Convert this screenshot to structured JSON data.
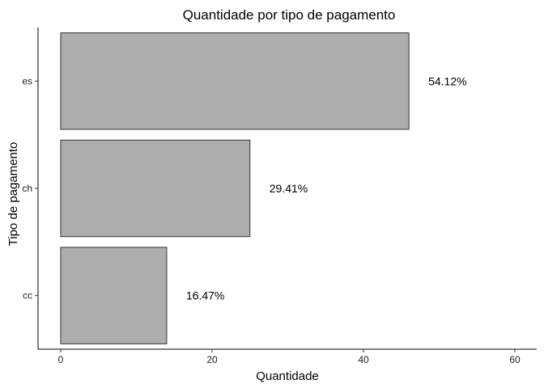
{
  "chart_data": {
    "type": "bar",
    "orientation": "horizontal",
    "title": "Quantidade por tipo de pagamento",
    "xlabel": "Quantidade",
    "ylabel": "Tipo de pagamento",
    "categories": [
      "es",
      "ch",
      "cc"
    ],
    "values": [
      46,
      25,
      14
    ],
    "data_labels": [
      "54.12%",
      "29.41%",
      "16.47%"
    ],
    "xlim": [
      0,
      62
    ],
    "xticks": [
      0,
      20,
      40,
      60
    ],
    "grid": false,
    "bar_color": "#ADADAD"
  }
}
